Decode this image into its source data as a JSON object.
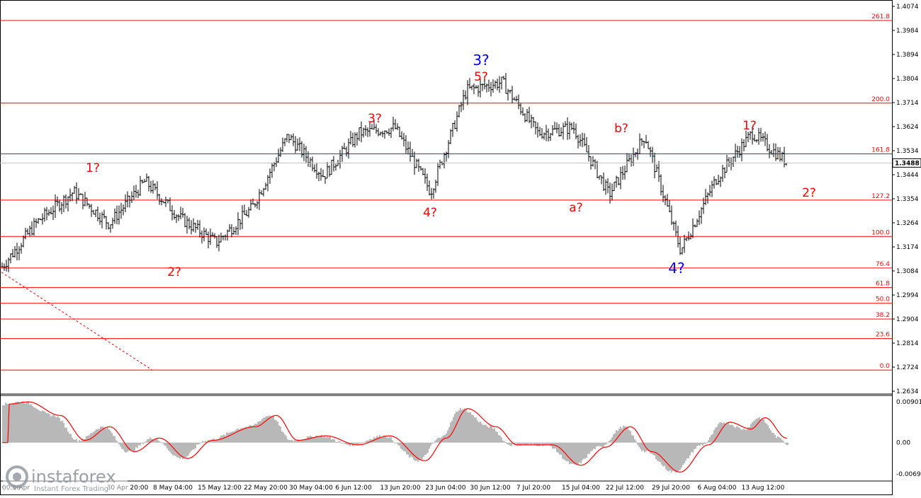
{
  "chart_data": {
    "type": "bar",
    "symbol": "GBP/USD",
    "timeframe": "H4",
    "price_axis": {
      "ticks": [
        "1.4074",
        "1.3984",
        "1.3894",
        "1.3804",
        "1.3714",
        "1.3624",
        "1.3534",
        "1.3444",
        "1.3354",
        "1.3264",
        "1.3174",
        "1.3084",
        "1.2994",
        "1.2904",
        "1.2814",
        "1.2724",
        "1.2634"
      ],
      "range": [
        1.2634,
        1.4074
      ],
      "current_price": "1.3488"
    },
    "fibonacci_levels": [
      {
        "label": "261.8",
        "price": 1.4021
      },
      {
        "label": "200.0",
        "price": 1.3712
      },
      {
        "label": "161.8",
        "price": 1.3522
      },
      {
        "label": "127.2",
        "price": 1.3349
      },
      {
        "label": "100.0",
        "price": 1.3213
      },
      {
        "label": "76.4",
        "price": 1.3095
      },
      {
        "label": "61.8",
        "price": 1.3022
      },
      {
        "label": "50.0",
        "price": 1.2963
      },
      {
        "label": "38.2",
        "price": 1.2904
      },
      {
        "label": "23.6",
        "price": 1.2831
      },
      {
        "label": "0.0",
        "price": 1.2713
      }
    ],
    "time_axis": {
      "labels": [
        "00:00",
        "1 Apr",
        "30 Apr 20:00",
        "8 May 04:00",
        "15 May 12:00",
        "22 May 20:00",
        "30 May 04:00",
        "6 Jun 12:00",
        "13 Jun 20:00",
        "23 Jun 04:00",
        "30 Jun 12:00",
        "7 Jul 20:00",
        "15 Jul 04:00",
        "22 Jul 12:00",
        "29 Jul 20:00",
        "6 Aug 04:00",
        "13 Aug 12:00"
      ]
    },
    "wave_labels": [
      {
        "text": "1?",
        "color": "#ff0000",
        "at": "swing-high-1"
      },
      {
        "text": "2?",
        "color": "#ff0000",
        "at": "swing-low-2"
      },
      {
        "text": "3?",
        "color": "#ff0000",
        "at": "swing-high-3"
      },
      {
        "text": "4?",
        "color": "#ff0000",
        "at": "swing-low-4"
      },
      {
        "text": "5?",
        "color": "#ff0000",
        "at": "major-high"
      },
      {
        "text": "3?",
        "color": "#0000ff",
        "at": "major-high"
      },
      {
        "text": "a?",
        "color": "#ff0000",
        "at": "swing-low-a"
      },
      {
        "text": "b?",
        "color": "#ff0000",
        "at": "swing-high-b"
      },
      {
        "text": "4?",
        "color": "#0000ff",
        "at": "major-low"
      },
      {
        "text": "1?",
        "color": "#ff0000",
        "at": "recent-high"
      },
      {
        "text": "2?",
        "color": "#ff0000",
        "at": "projected"
      }
    ],
    "price_path_keypoints": [
      {
        "date": "1 Apr",
        "price": 1.31
      },
      {
        "date": "8 Apr",
        "price": 1.327
      },
      {
        "date": "16 Apr",
        "price": 1.338
      },
      {
        "date": "21 Apr",
        "price": 1.326
      },
      {
        "date": "28 Apr",
        "price": 1.342
      },
      {
        "date": "2 May",
        "price": 1.328
      },
      {
        "date": "8 May 04:00",
        "price": 1.319
      },
      {
        "date": "12 May",
        "price": 1.332
      },
      {
        "date": "22 May 20:00",
        "price": 1.359
      },
      {
        "date": "28 May",
        "price": 1.344
      },
      {
        "date": "4 Jun",
        "price": 1.36
      },
      {
        "date": "13 Jun 20:00",
        "price": 1.362
      },
      {
        "date": "17 Jun",
        "price": 1.338
      },
      {
        "date": "23 Jun 04:00",
        "price": 1.376
      },
      {
        "date": "30 Jun 12:00",
        "price": 1.379
      },
      {
        "date": "1 Jul",
        "price": 1.36
      },
      {
        "date": "7 Jul 20:00",
        "price": 1.362
      },
      {
        "date": "15 Jul 04:00",
        "price": 1.337
      },
      {
        "date": "22 Jul 12:00",
        "price": 1.359
      },
      {
        "date": "29 Jul 20:00",
        "price": 1.316
      },
      {
        "date": "6 Aug 04:00",
        "price": 1.343
      },
      {
        "date": "13 Aug 12:00",
        "price": 1.36
      },
      {
        "date": "17 Aug",
        "price": 1.3488
      }
    ],
    "oscillator": {
      "type": "histogram+signal",
      "ticks": [
        "0.00901",
        "0.00",
        "-0.00692"
      ],
      "range": [
        -0.00692,
        0.00901
      ],
      "colors": {
        "histogram": "#b8b8b8",
        "signal": "#ff0000"
      }
    },
    "colors": {
      "bars": "#000000",
      "levels": "#ff0000",
      "grid_text": "#000000"
    }
  },
  "watermark": {
    "logo_text": "instaforex",
    "tagline": "Instant Forex Trading"
  }
}
